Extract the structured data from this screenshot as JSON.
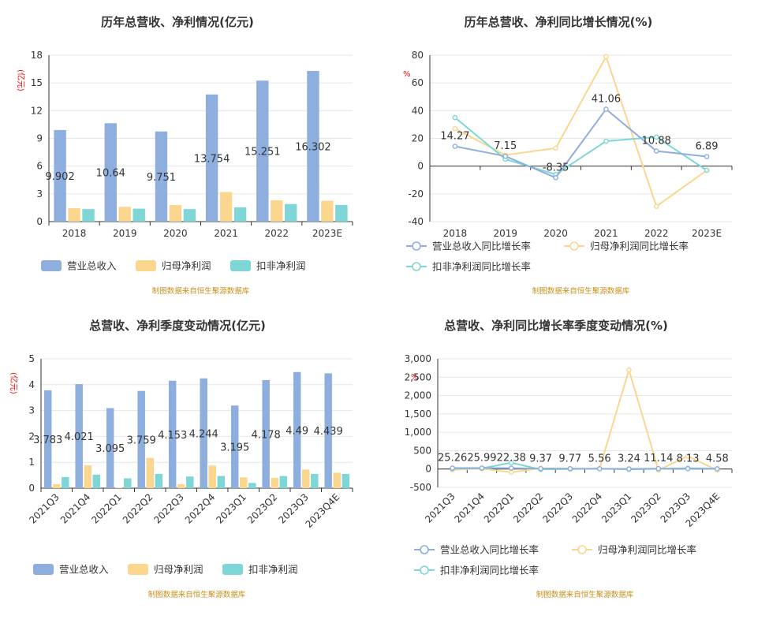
{
  "colors": {
    "revenue": "#8eaedd",
    "parent_profit": "#fbd68f",
    "deducted_profit": "#7fd6d6",
    "grid": "#e6e6e6",
    "axis": "#333333",
    "unit": "#ff0000",
    "source": "#c8901d"
  },
  "source_note": "制图数据来自恒生聚源数据库",
  "chart_data": [
    {
      "id": "annual-bars",
      "type": "bar",
      "title": "历年总营收、净利情况(亿元)",
      "unit": "(亿元)",
      "categories": [
        "2018",
        "2019",
        "2020",
        "2021",
        "2022",
        "2023E"
      ],
      "ylim": [
        0,
        18
      ],
      "yticks": [
        0,
        3,
        6,
        9,
        12,
        15,
        18
      ],
      "grid": true,
      "legend": "bottom-left",
      "series": [
        {
          "name": "营业总收入",
          "color_key": "revenue",
          "values": [
            9.902,
            10.64,
            9.751,
            13.754,
            15.251,
            16.302
          ],
          "labels": [
            "9.902",
            "10.64",
            "9.751",
            "13.754",
            "15.251",
            "16.302"
          ]
        },
        {
          "name": "归母净利润",
          "color_key": "parent_profit",
          "values": [
            1.45,
            1.6,
            1.8,
            3.2,
            2.3,
            2.25
          ]
        },
        {
          "name": "扣非净利润",
          "color_key": "deducted_profit",
          "values": [
            1.35,
            1.4,
            1.35,
            1.55,
            1.9,
            1.8
          ]
        }
      ]
    },
    {
      "id": "annual-growth",
      "type": "line",
      "title": "历年总营收、净利同比增长情况(%)",
      "unit": "%",
      "categories": [
        "2018",
        "2019",
        "2020",
        "2021",
        "2022",
        "2023E"
      ],
      "ylim": [
        -40,
        80
      ],
      "yticks": [
        -40,
        -20,
        0,
        20,
        40,
        60,
        80
      ],
      "grid": true,
      "legend": "bottom-left",
      "series": [
        {
          "name": "营业总收入同比增长率",
          "color_key": "revenue",
          "values": [
            14.27,
            7.15,
            -8.35,
            41.06,
            10.88,
            6.89
          ],
          "labels": [
            "14.27",
            "7.15",
            "-8.35",
            "41.06",
            "10.88",
            "6.89"
          ]
        },
        {
          "name": "归母净利润同比增长率",
          "color_key": "parent_profit",
          "values": [
            27,
            8,
            13,
            79,
            -29,
            -3
          ]
        },
        {
          "name": "扣非净利润同比增长率",
          "color_key": "deducted_profit",
          "values": [
            35,
            5,
            -6,
            18,
            21,
            -3
          ]
        }
      ]
    },
    {
      "id": "quarterly-bars",
      "type": "bar",
      "title": "总营收、净利季度变动情况(亿元)",
      "unit": "(亿元)",
      "categories": [
        "2021Q3",
        "2021Q4",
        "2022Q1",
        "2022Q2",
        "2022Q3",
        "2022Q4",
        "2023Q1",
        "2023Q2",
        "2023Q3",
        "2023Q4E"
      ],
      "ylim": [
        0,
        5
      ],
      "yticks": [
        0,
        1,
        2,
        3,
        4,
        5
      ],
      "grid": true,
      "legend": "bottom-left",
      "series": [
        {
          "name": "营业总收入",
          "color_key": "revenue",
          "values": [
            3.783,
            4.021,
            3.095,
            3.759,
            4.153,
            4.244,
            3.195,
            4.178,
            4.49,
            4.439
          ],
          "labels": [
            "3.783",
            "4.021",
            "3.095",
            "3.759",
            "4.153",
            "4.244",
            "3.195",
            "4.178",
            "4.49",
            "4.439"
          ]
        },
        {
          "name": "归母净利润",
          "color_key": "parent_profit",
          "values": [
            0.15,
            0.88,
            0.02,
            1.17,
            0.15,
            0.87,
            0.42,
            0.4,
            0.72,
            0.6
          ]
        },
        {
          "name": "扣非净利润",
          "color_key": "deducted_profit",
          "values": [
            0.43,
            0.52,
            0.38,
            0.55,
            0.45,
            0.47,
            0.2,
            0.47,
            0.55,
            0.55
          ]
        }
      ]
    },
    {
      "id": "quarterly-growth",
      "type": "line",
      "title": "总营收、净利同比增长率季度变动情况(%)",
      "unit": "%",
      "categories": [
        "2021Q3",
        "2021Q4",
        "2022Q1",
        "2022Q2",
        "2022Q3",
        "2022Q4",
        "2023Q1",
        "2023Q2",
        "2023Q3",
        "2023Q4E"
      ],
      "ylim": [
        -500,
        3000
      ],
      "yticks": [
        -500,
        0,
        500,
        1000,
        1500,
        2000,
        2500,
        3000
      ],
      "ytick_labels": [
        "-500",
        "0",
        "500",
        "1,000",
        "1,500",
        "2,000",
        "2,500",
        "3,000"
      ],
      "grid": true,
      "legend": "bottom-left",
      "series": [
        {
          "name": "营业总收入同比增长率",
          "color_key": "revenue",
          "values": [
            25.26,
            25.99,
            22.38,
            9.37,
            9.77,
            5.56,
            3.24,
            11.14,
            8.13,
            4.58
          ],
          "labels": [
            "25.26",
            "25.99",
            "22.38",
            "9.37",
            "9.77",
            "5.56",
            "3.24",
            "11.14",
            "8.13",
            "4.58"
          ]
        },
        {
          "name": "归母净利润同比增长率",
          "color_key": "parent_profit",
          "values": [
            -20,
            10,
            -90,
            20,
            0,
            10,
            2700,
            -30,
            350,
            -30
          ]
        },
        {
          "name": "扣非净利润同比增长率",
          "color_key": "deducted_profit",
          "values": [
            10,
            20,
            170,
            -10,
            0,
            10,
            -10,
            5,
            20,
            10
          ]
        }
      ]
    }
  ]
}
